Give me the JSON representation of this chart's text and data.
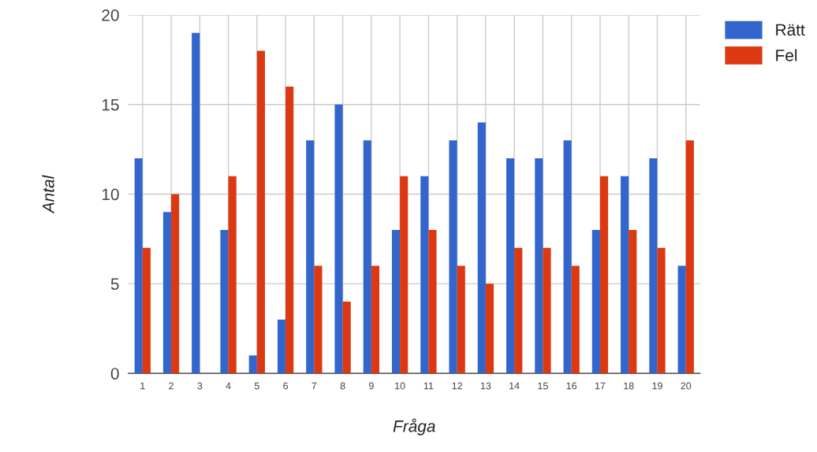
{
  "chart_data": {
    "type": "bar",
    "xlabel": "Fråga",
    "ylabel": "Antal",
    "categories": [
      "1",
      "2",
      "3",
      "4",
      "5",
      "6",
      "7",
      "8",
      "9",
      "10",
      "11",
      "12",
      "13",
      "14",
      "15",
      "16",
      "17",
      "18",
      "19",
      "20"
    ],
    "series": [
      {
        "name": "Rätt",
        "color": "#3366cc",
        "values": [
          12,
          9,
          19,
          8,
          1,
          3,
          13,
          15,
          13,
          8,
          11,
          13,
          14,
          12,
          12,
          13,
          8,
          11,
          12,
          6
        ]
      },
      {
        "name": "Fel",
        "color": "#dc3912",
        "values": [
          7,
          10,
          0,
          11,
          18,
          16,
          6,
          4,
          6,
          11,
          8,
          6,
          5,
          7,
          7,
          6,
          11,
          8,
          7,
          13
        ]
      }
    ],
    "ylim": [
      0,
      20
    ],
    "yticks": [
      0,
      5,
      10,
      15,
      20
    ],
    "grid": true,
    "legend": "top right"
  }
}
